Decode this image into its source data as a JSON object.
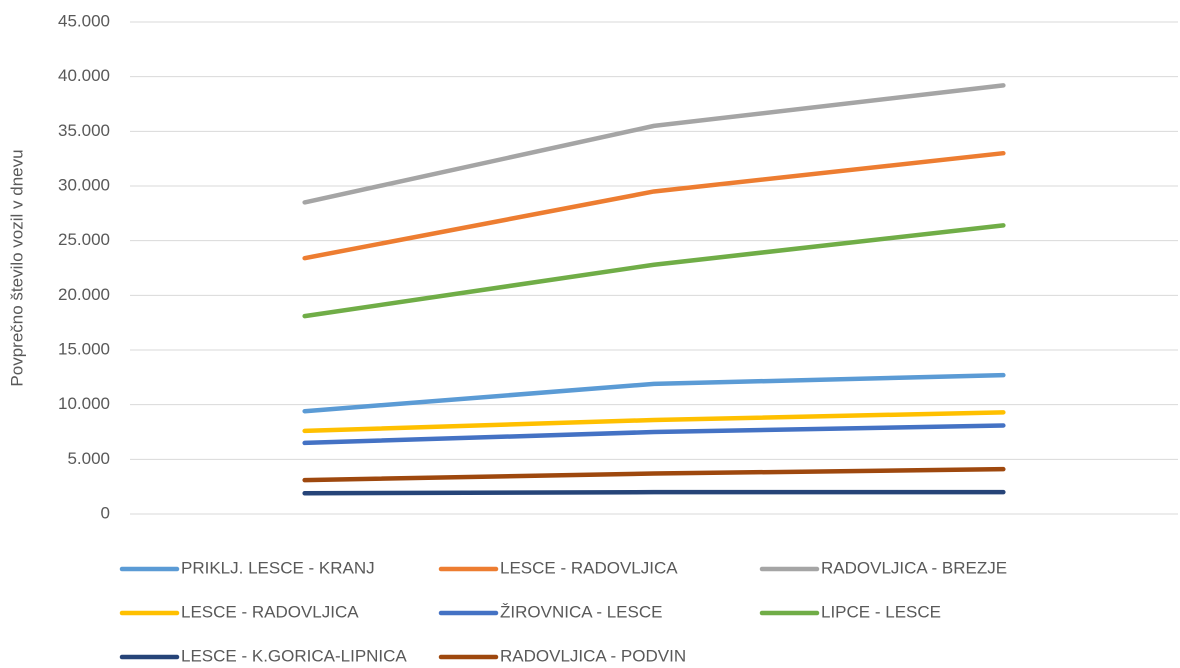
{
  "chart_data": {
    "type": "line",
    "y_label": "Povprečno število vozil v dnevu",
    "categories": [
      null,
      null,
      null
    ],
    "ylim": [
      0,
      45000
    ],
    "yticks": [
      0,
      {
        "value": 5000,
        "label": "5.000"
      },
      {
        "value": 10000,
        "label": "10.000"
      },
      {
        "value": 15000,
        "label": "15.000"
      },
      {
        "value": 20000,
        "label": "20.000"
      },
      {
        "value": 25000,
        "label": "25.000"
      },
      {
        "value": 30000,
        "label": "30.000"
      },
      {
        "value": 35000,
        "label": "35.000"
      },
      {
        "value": 40000,
        "label": "40.000"
      },
      {
        "value": 45000,
        "label": "45.000"
      }
    ],
    "grid": true,
    "legend": "bottom",
    "series": [
      {
        "name": "PRIKLJ. LESCE - KRANJ",
        "color": "#5b9bd5",
        "values": [
          9400,
          11900,
          12700
        ]
      },
      {
        "name": "LESCE - RADOVLJICA",
        "color": "#ed7d31",
        "values": [
          23400,
          29500,
          33000
        ]
      },
      {
        "name": "RADOVLJICA - BREZJE",
        "color": "#a5a5a5",
        "values": [
          28500,
          35500,
          39200
        ]
      },
      {
        "name": "LESCE - RADOVLJICA",
        "color": "#ffc000",
        "values": [
          7600,
          8600,
          9300
        ]
      },
      {
        "name": "ŽIROVNICA - LESCE",
        "color": "#4472c4",
        "values": [
          6500,
          7500,
          8100
        ]
      },
      {
        "name": "LIPCE - LESCE",
        "color": "#70ad47",
        "values": [
          18100,
          22800,
          26400
        ]
      },
      {
        "name": "LESCE - K.GORICA-LIPNICA",
        "color": "#264478",
        "values": [
          1900,
          2000,
          2000
        ]
      },
      {
        "name": "RADOVLJICA - PODVIN",
        "color": "#9e480e",
        "values": [
          3100,
          3700,
          4100
        ]
      }
    ]
  }
}
